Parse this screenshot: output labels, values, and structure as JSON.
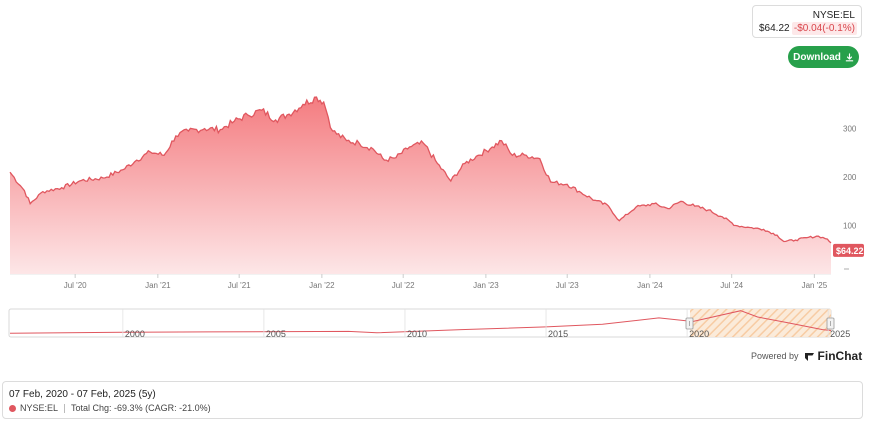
{
  "header": {
    "symbol": "NYSE:EL",
    "price": "$64.22",
    "change": "-$0.04(-0.1%)",
    "download_label": "Download",
    "download_icon": "download-icon"
  },
  "powered": {
    "label": "Powered by",
    "brand": "FinChat",
    "brand_icon": "finchat-logo-icon"
  },
  "legend": {
    "range": "07 Feb, 2020 - 07 Feb, 2025 (5y)",
    "series_label": "NYSE:EL",
    "total_change": "Total Chg: -69.3% (CAGR: -21.0%)"
  },
  "colors": {
    "line": "#e0575f",
    "fill_top": "#f47c80",
    "fill_bottom": "#fde6e7",
    "nav_selection": "#f6c69a",
    "download": "#27a04b"
  },
  "chart_data": {
    "type": "area",
    "title": "",
    "xlabel": "",
    "ylabel": "",
    "x_tick_labels": [
      "Jul '20",
      "Jan '21",
      "Jul '21",
      "Jan '22",
      "Jul '22",
      "Jan '23",
      "Jul '23",
      "Jan '24",
      "Jul '24",
      "Jan '25"
    ],
    "x_tick_dates": [
      "2020-07",
      "2021-01",
      "2021-07",
      "2022-01",
      "2022-07",
      "2023-01",
      "2023-07",
      "2024-01",
      "2024-07",
      "2025-01"
    ],
    "y_ticks": [
      100,
      200,
      300
    ],
    "ylim": [
      0,
      390
    ],
    "grid": false,
    "last_price_label": "$64.22",
    "series": [
      {
        "name": "NYSE:EL",
        "points": [
          [
            "2020-02-07",
            210
          ],
          [
            "2020-03-10",
            172
          ],
          [
            "2020-03-23",
            145
          ],
          [
            "2020-04-20",
            170
          ],
          [
            "2020-06-01",
            178
          ],
          [
            "2020-07-15",
            193
          ],
          [
            "2020-09-01",
            198
          ],
          [
            "2020-10-15",
            215
          ],
          [
            "2020-11-15",
            235
          ],
          [
            "2020-12-15",
            252
          ],
          [
            "2021-01-15",
            245
          ],
          [
            "2021-02-10",
            285
          ],
          [
            "2021-03-10",
            295
          ],
          [
            "2021-04-15",
            300
          ],
          [
            "2021-05-20",
            298
          ],
          [
            "2021-06-20",
            315
          ],
          [
            "2021-07-20",
            328
          ],
          [
            "2021-08-20",
            338
          ],
          [
            "2021-09-20",
            318
          ],
          [
            "2021-10-20",
            330
          ],
          [
            "2021-11-20",
            350
          ],
          [
            "2021-12-20",
            365
          ],
          [
            "2022-01-05",
            355
          ],
          [
            "2022-01-25",
            295
          ],
          [
            "2022-02-25",
            275
          ],
          [
            "2022-03-25",
            270
          ],
          [
            "2022-04-25",
            258
          ],
          [
            "2022-05-20",
            235
          ],
          [
            "2022-06-15",
            240
          ],
          [
            "2022-07-15",
            262
          ],
          [
            "2022-08-15",
            270
          ],
          [
            "2022-09-15",
            228
          ],
          [
            "2022-10-15",
            192
          ],
          [
            "2022-11-15",
            228
          ],
          [
            "2022-12-15",
            245
          ],
          [
            "2023-01-15",
            262
          ],
          [
            "2023-02-05",
            275
          ],
          [
            "2023-03-01",
            245
          ],
          [
            "2023-04-01",
            245
          ],
          [
            "2023-05-01",
            238
          ],
          [
            "2023-05-25",
            190
          ],
          [
            "2023-07-01",
            185
          ],
          [
            "2023-08-01",
            168
          ],
          [
            "2023-09-01",
            152
          ],
          [
            "2023-10-01",
            140
          ],
          [
            "2023-10-25",
            110
          ],
          [
            "2023-12-01",
            138
          ],
          [
            "2024-01-10",
            145
          ],
          [
            "2024-02-10",
            135
          ],
          [
            "2024-03-10",
            150
          ],
          [
            "2024-04-10",
            140
          ],
          [
            "2024-05-10",
            132
          ],
          [
            "2024-06-10",
            118
          ],
          [
            "2024-07-10",
            100
          ],
          [
            "2024-08-10",
            96
          ],
          [
            "2024-09-10",
            92
          ],
          [
            "2024-10-10",
            80
          ],
          [
            "2024-10-25",
            67
          ],
          [
            "2024-11-20",
            70
          ],
          [
            "2024-12-15",
            75
          ],
          [
            "2025-01-10",
            78
          ],
          [
            "2025-01-30",
            72
          ],
          [
            "2025-02-07",
            64.22
          ]
        ]
      }
    ],
    "navigator": {
      "x_tick_labels": [
        "2000",
        "2005",
        "2010",
        "2015",
        "2020",
        "2025"
      ],
      "selected_range": [
        "2020-02-07",
        "2025-02-07"
      ]
    }
  }
}
